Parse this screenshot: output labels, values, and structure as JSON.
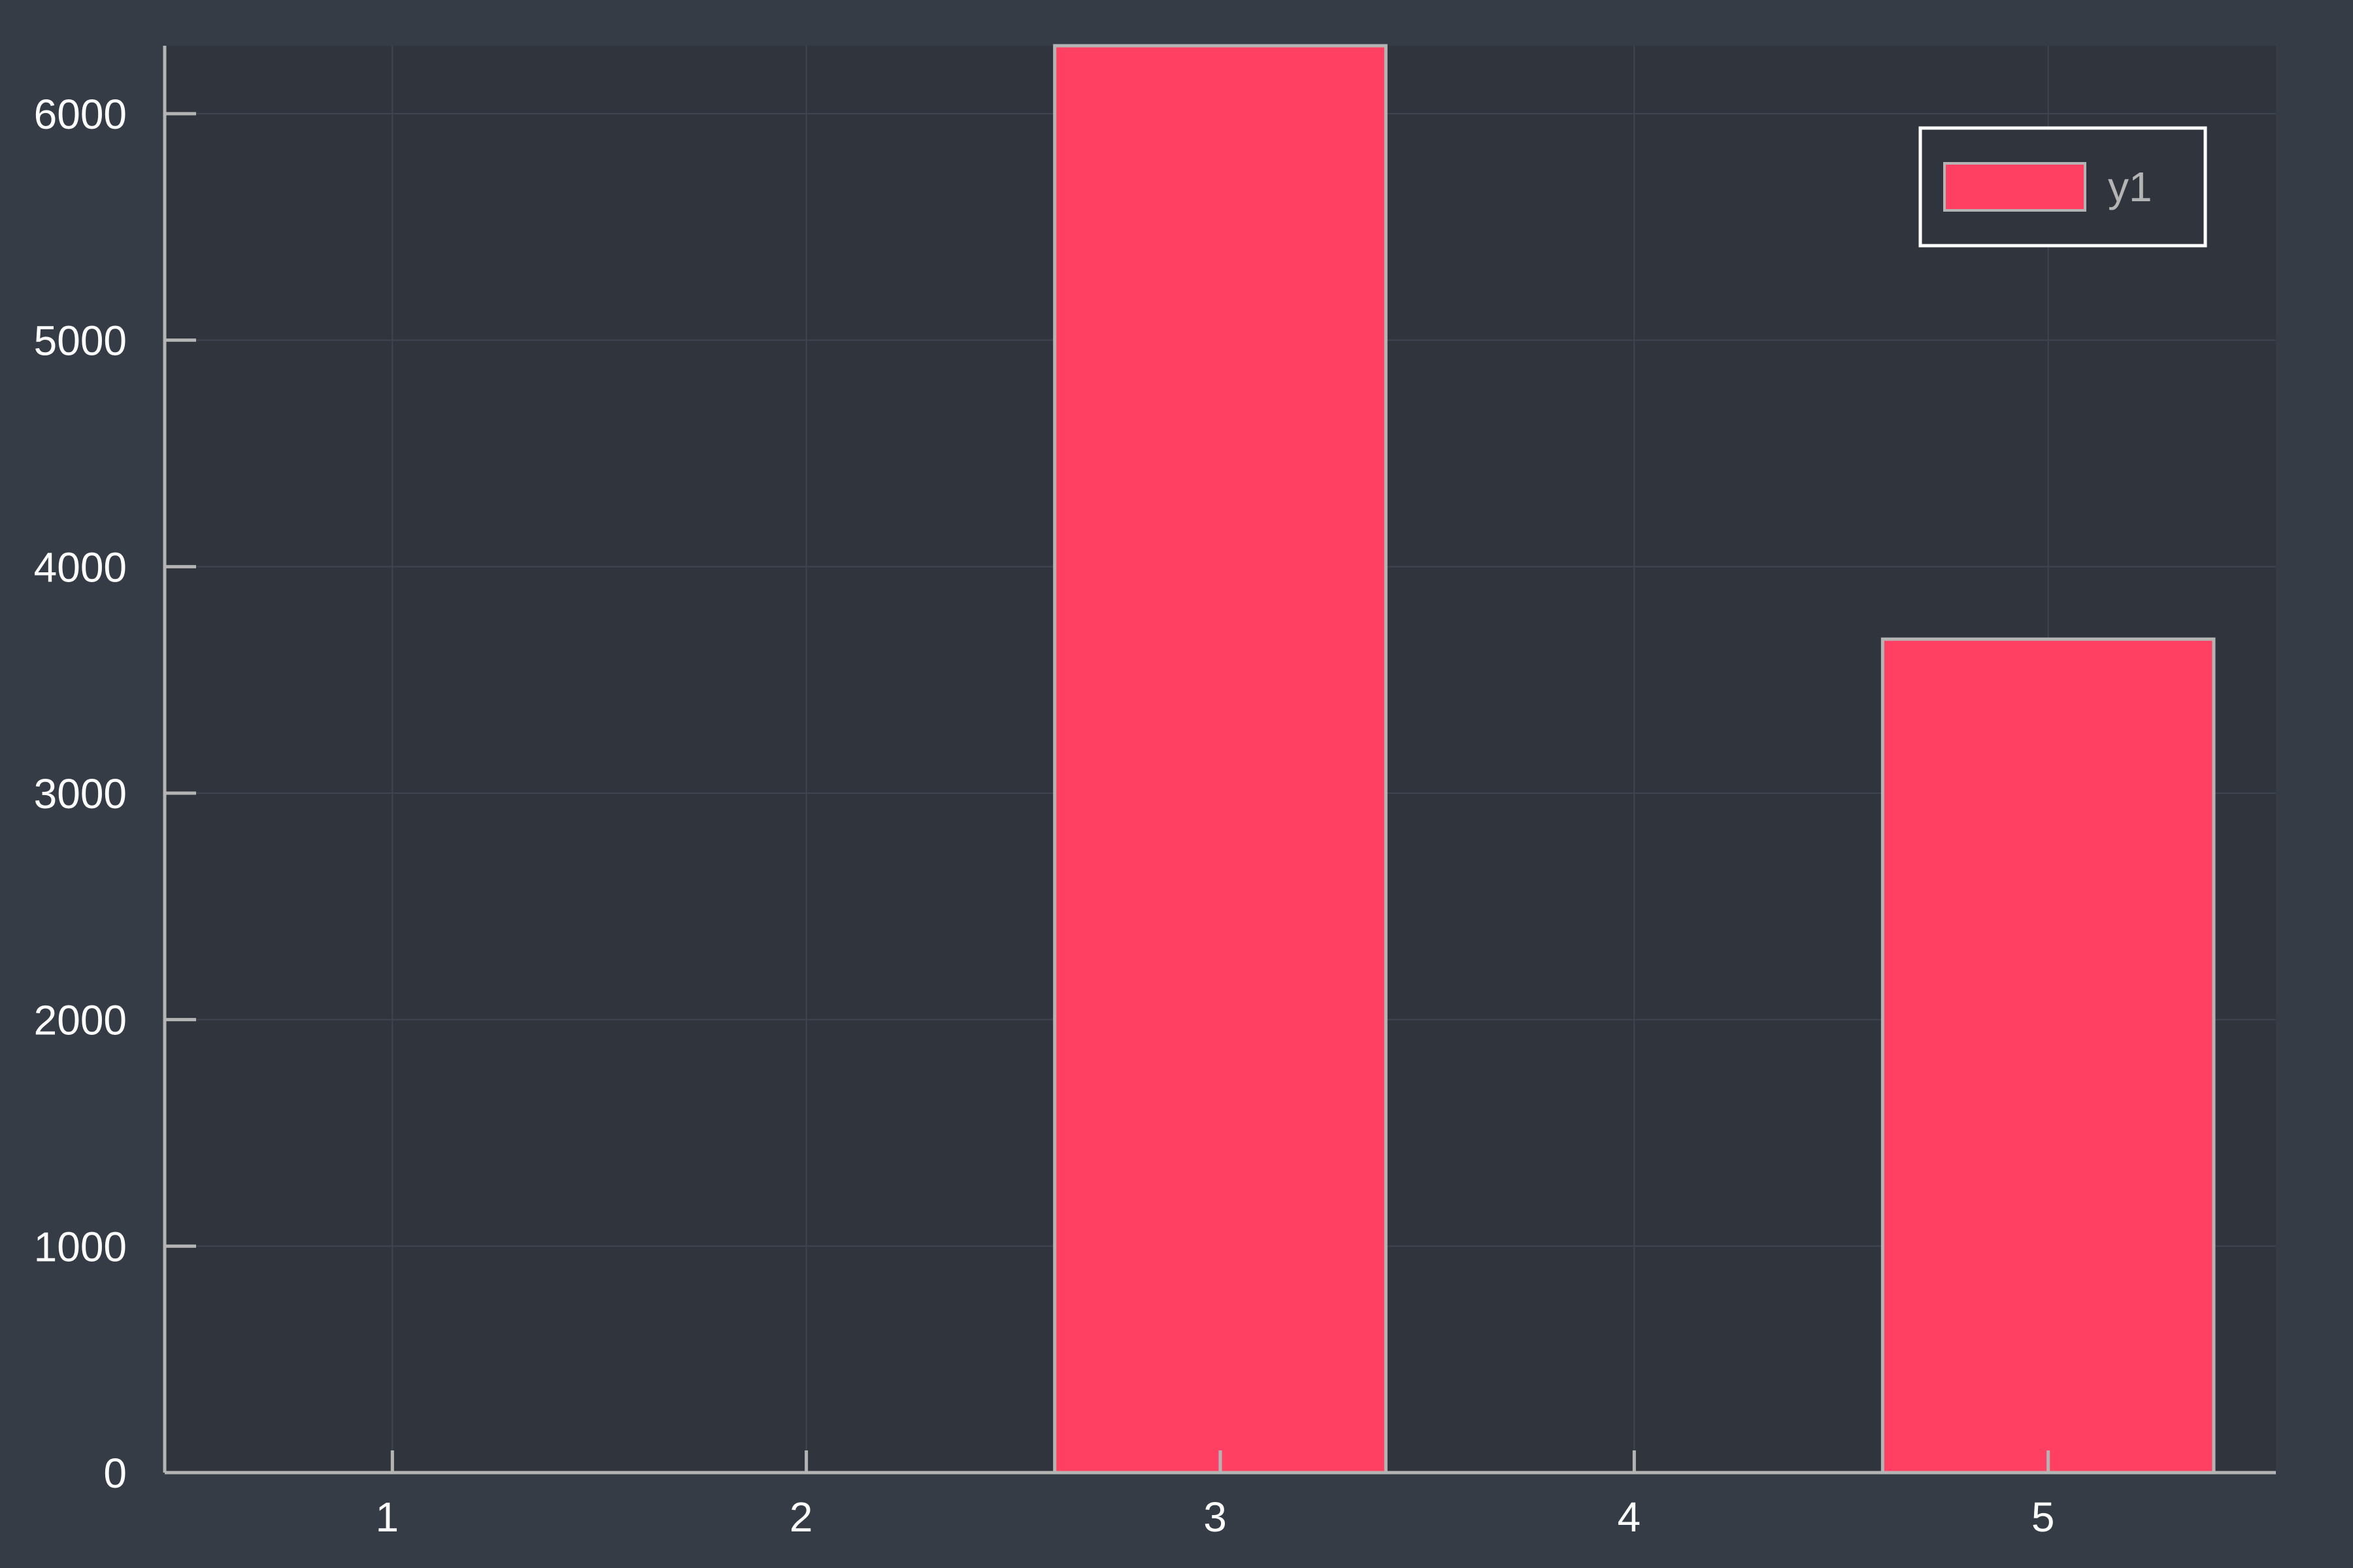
{
  "chart_data": {
    "type": "bar",
    "categories": [
      "1",
      "2",
      "3",
      "4",
      "5"
    ],
    "x": [
      1,
      2,
      3,
      4,
      5
    ],
    "series": [
      {
        "name": "y1",
        "values": [
          0,
          0,
          6300,
          0,
          3680
        ]
      }
    ],
    "title": "",
    "xlabel": "",
    "ylabel": "",
    "xlim": [
      0.45,
      5.55
    ],
    "ylim": [
      0,
      6300
    ],
    "yticks": [
      0,
      1000,
      2000,
      3000,
      4000,
      5000,
      6000
    ],
    "xticks": [
      1,
      2,
      3,
      4,
      5
    ],
    "bar_width": 0.8,
    "grid": true,
    "legend": {
      "position": "top-right",
      "entries": [
        "y1"
      ]
    },
    "colors": {
      "background": "#363c46",
      "plot_background": "#30343c",
      "bar_fill": "#ff4062",
      "bar_edge": "#b4b4b4",
      "axis": "#b4b4b4",
      "grid": "#3f4550",
      "tick_text": "#ffffff",
      "legend_text": "#b4b4b4",
      "legend_border": "#ffffff"
    }
  }
}
